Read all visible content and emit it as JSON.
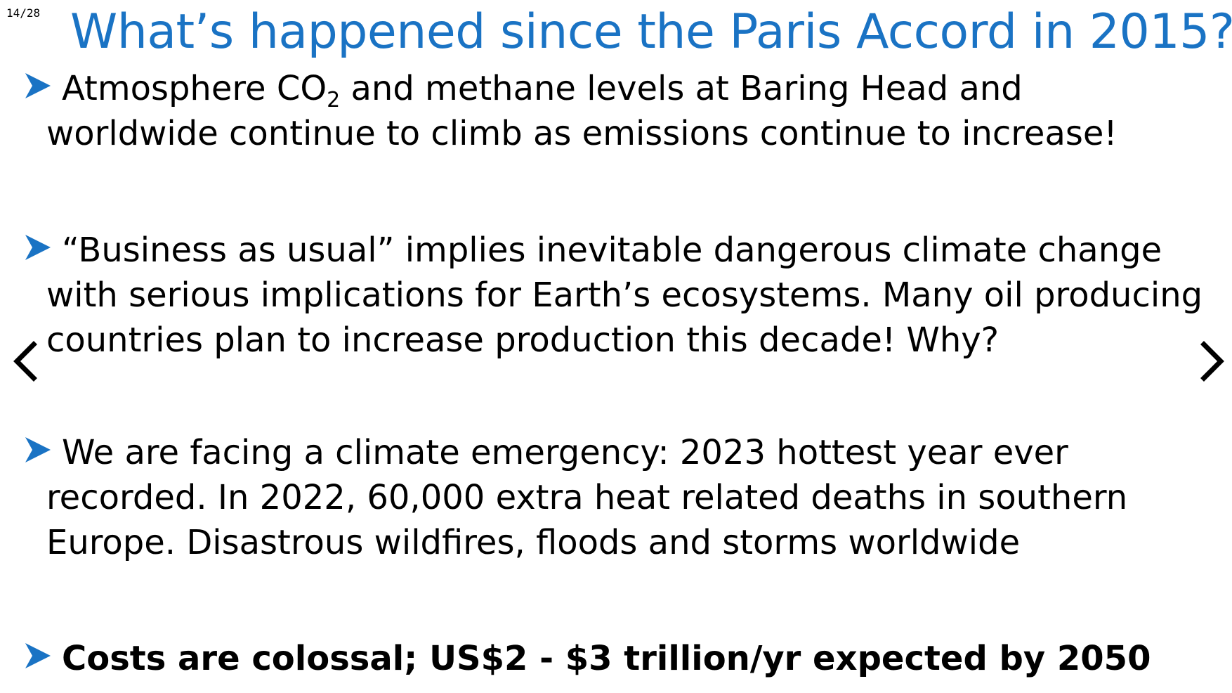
{
  "slide": {
    "counter": "14/28",
    "title": "What’s happened since the Paris Accord in 2015?"
  },
  "bullets": [
    {
      "line1_pre": "Atmosphere CO",
      "line1_sub": "2",
      "line1_post": " and methane levels at Baring Head and",
      "line2": "worldwide continue to climb as emissions continue to increase!"
    },
    {
      "line1": "“Business as usual” implies inevitable dangerous climate change",
      "line2": "with serious implications for Earth’s ecosystems. Many oil producing",
      "line3": "countries plan to increase production this decade! Why?"
    },
    {
      "line1": "We are facing a climate emergency: 2023 hottest year ever",
      "line2": "recorded. In 2022, 60,000 extra heat related deaths in southern",
      "line3": "Europe. Disastrous wildfires, floods and storms worldwide"
    },
    {
      "line1": "Costs are colossal; US$2 - $3 trillion/yr expected by 2050"
    }
  ],
  "navigation": {
    "prev_icon": "chevron-left-icon",
    "next_icon": "chevron-right-icon"
  },
  "colors": {
    "title": "#1a73c4",
    "bullet_arrow": "#1a73c4",
    "text": "#000000",
    "background": "#ffffff"
  }
}
